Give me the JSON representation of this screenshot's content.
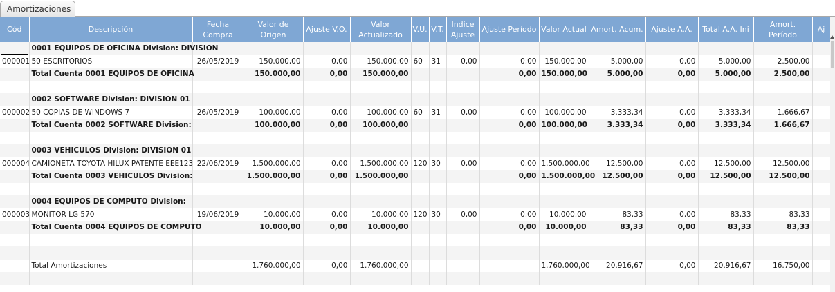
{
  "tab": {
    "label": "Amortizaciones"
  },
  "columns": [
    "Cód",
    "Descripción",
    "Fecha Compra",
    "Valor de Origen",
    "Ajuste V.O.",
    "Valor Actualizado",
    "V.U.",
    "V.T.",
    "Indice Ajuste",
    "Ajuste Período",
    "Valor Actual",
    "Amort. Acum.",
    "Ajuste A.A.",
    "Total A.A. Ini",
    "Amort. Período",
    "Aj"
  ],
  "rows": [
    {
      "type": "header",
      "cells": [
        "",
        "0001 EQUIPOS DE OFICINA Division: DIVISION",
        "",
        "",
        "",
        "",
        "",
        "",
        "",
        "",
        "",
        "",
        "",
        "",
        "",
        ""
      ]
    },
    {
      "type": "item",
      "cells": [
        "000001",
        "50 ESCRITORIOS",
        "26/05/2019",
        "150.000,00",
        "0,00",
        "150.000,00",
        "60",
        "31",
        "0,00",
        "0,00",
        "150.000,00",
        "5.000,00",
        "0,00",
        "5.000,00",
        "2.500,00",
        ""
      ]
    },
    {
      "type": "total",
      "cells": [
        "",
        "Total Cuenta 0001 EQUIPOS DE OFICINA",
        "",
        "150.000,00",
        "0,00",
        "150.000,00",
        "",
        "",
        "",
        "0,00",
        "150.000,00",
        "5.000,00",
        "0,00",
        "5.000,00",
        "2.500,00",
        ""
      ]
    },
    {
      "type": "blank",
      "cells": [
        "",
        "",
        "",
        "",
        "",
        "",
        "",
        "",
        "",
        "",
        "",
        "",
        "",
        "",
        "",
        ""
      ]
    },
    {
      "type": "header",
      "cells": [
        "",
        "0002 SOFTWARE Division: DIVISION 01",
        "",
        "",
        "",
        "",
        "",
        "",
        "",
        "",
        "",
        "",
        "",
        "",
        "",
        ""
      ]
    },
    {
      "type": "item",
      "cells": [
        "000002",
        "50 COPIAS DE WINDOWS 7",
        "26/05/2019",
        "100.000,00",
        "0,00",
        "100.000,00",
        "60",
        "31",
        "0,00",
        "0,00",
        "100.000,00",
        "3.333,34",
        "0,00",
        "3.333,34",
        "1.666,67",
        ""
      ]
    },
    {
      "type": "total",
      "cells": [
        "",
        "Total Cuenta 0002 SOFTWARE Division:",
        "",
        "100.000,00",
        "0,00",
        "100.000,00",
        "",
        "",
        "",
        "0,00",
        "100.000,00",
        "3.333,34",
        "0,00",
        "3.333,34",
        "1.666,67",
        ""
      ]
    },
    {
      "type": "blank",
      "cells": [
        "",
        "",
        "",
        "",
        "",
        "",
        "",
        "",
        "",
        "",
        "",
        "",
        "",
        "",
        "",
        ""
      ]
    },
    {
      "type": "header",
      "cells": [
        "",
        "0003 VEHICULOS Division: DIVISION 01",
        "",
        "",
        "",
        "",
        "",
        "",
        "",
        "",
        "",
        "",
        "",
        "",
        "",
        ""
      ]
    },
    {
      "type": "item",
      "cells": [
        "000004",
        "CAMIONETA TOYOTA HILUX PATENTE EEE123",
        "22/06/2019",
        "1.500.000,00",
        "0,00",
        "1.500.000,00",
        "120",
        "30",
        "0,00",
        "0,00",
        "1.500.000,00",
        "12.500,00",
        "0,00",
        "12.500,00",
        "12.500,00",
        ""
      ]
    },
    {
      "type": "total",
      "cells": [
        "",
        "Total Cuenta 0003 VEHICULOS Division:",
        "",
        "1.500.000,00",
        "0,00",
        "1.500.000,00",
        "",
        "",
        "",
        "0,00",
        "1.500.000,00",
        "12.500,00",
        "0,00",
        "12.500,00",
        "12.500,00",
        ""
      ]
    },
    {
      "type": "blank",
      "cells": [
        "",
        "",
        "",
        "",
        "",
        "",
        "",
        "",
        "",
        "",
        "",
        "",
        "",
        "",
        "",
        ""
      ]
    },
    {
      "type": "header",
      "cells": [
        "",
        "0004 EQUIPOS DE COMPUTO Division:",
        "",
        "",
        "",
        "",
        "",
        "",
        "",
        "",
        "",
        "",
        "",
        "",
        "",
        ""
      ]
    },
    {
      "type": "item",
      "cells": [
        "000003",
        "MONITOR LG 570",
        "19/06/2019",
        "10.000,00",
        "0,00",
        "10.000,00",
        "120",
        "30",
        "0,00",
        "0,00",
        "10.000,00",
        "83,33",
        "0,00",
        "83,33",
        "83,33",
        ""
      ]
    },
    {
      "type": "total",
      "cells": [
        "",
        "Total Cuenta 0004 EQUIPOS DE COMPUTO",
        "",
        "10.000,00",
        "0,00",
        "10.000,00",
        "",
        "",
        "",
        "0,00",
        "10.000,00",
        "83,33",
        "0,00",
        "83,33",
        "83,33",
        ""
      ]
    },
    {
      "type": "blank",
      "cells": [
        "",
        "",
        "",
        "",
        "",
        "",
        "",
        "",
        "",
        "",
        "",
        "",
        "",
        "",
        "",
        ""
      ]
    },
    {
      "type": "blank",
      "cells": [
        "",
        "",
        "",
        "",
        "",
        "",
        "",
        "",
        "",
        "",
        "",
        "",
        "",
        "",
        "",
        ""
      ]
    },
    {
      "type": "grand",
      "cells": [
        "",
        "Total Amortizaciones",
        "",
        "1.760.000,00",
        "0,00",
        "1.760.000,00",
        "",
        "",
        "",
        "",
        "1.760.000,00",
        "20.916,67",
        "0,00",
        "20.916,67",
        "16.750,00",
        ""
      ]
    },
    {
      "type": "blank",
      "cells": [
        "",
        "",
        "",
        "",
        "",
        "",
        "",
        "",
        "",
        "",
        "",
        "",
        "",
        "",
        "",
        ""
      ]
    }
  ],
  "colors": {
    "header_bg": "#7fa7d4",
    "row_alt": "#f4f4f4"
  }
}
